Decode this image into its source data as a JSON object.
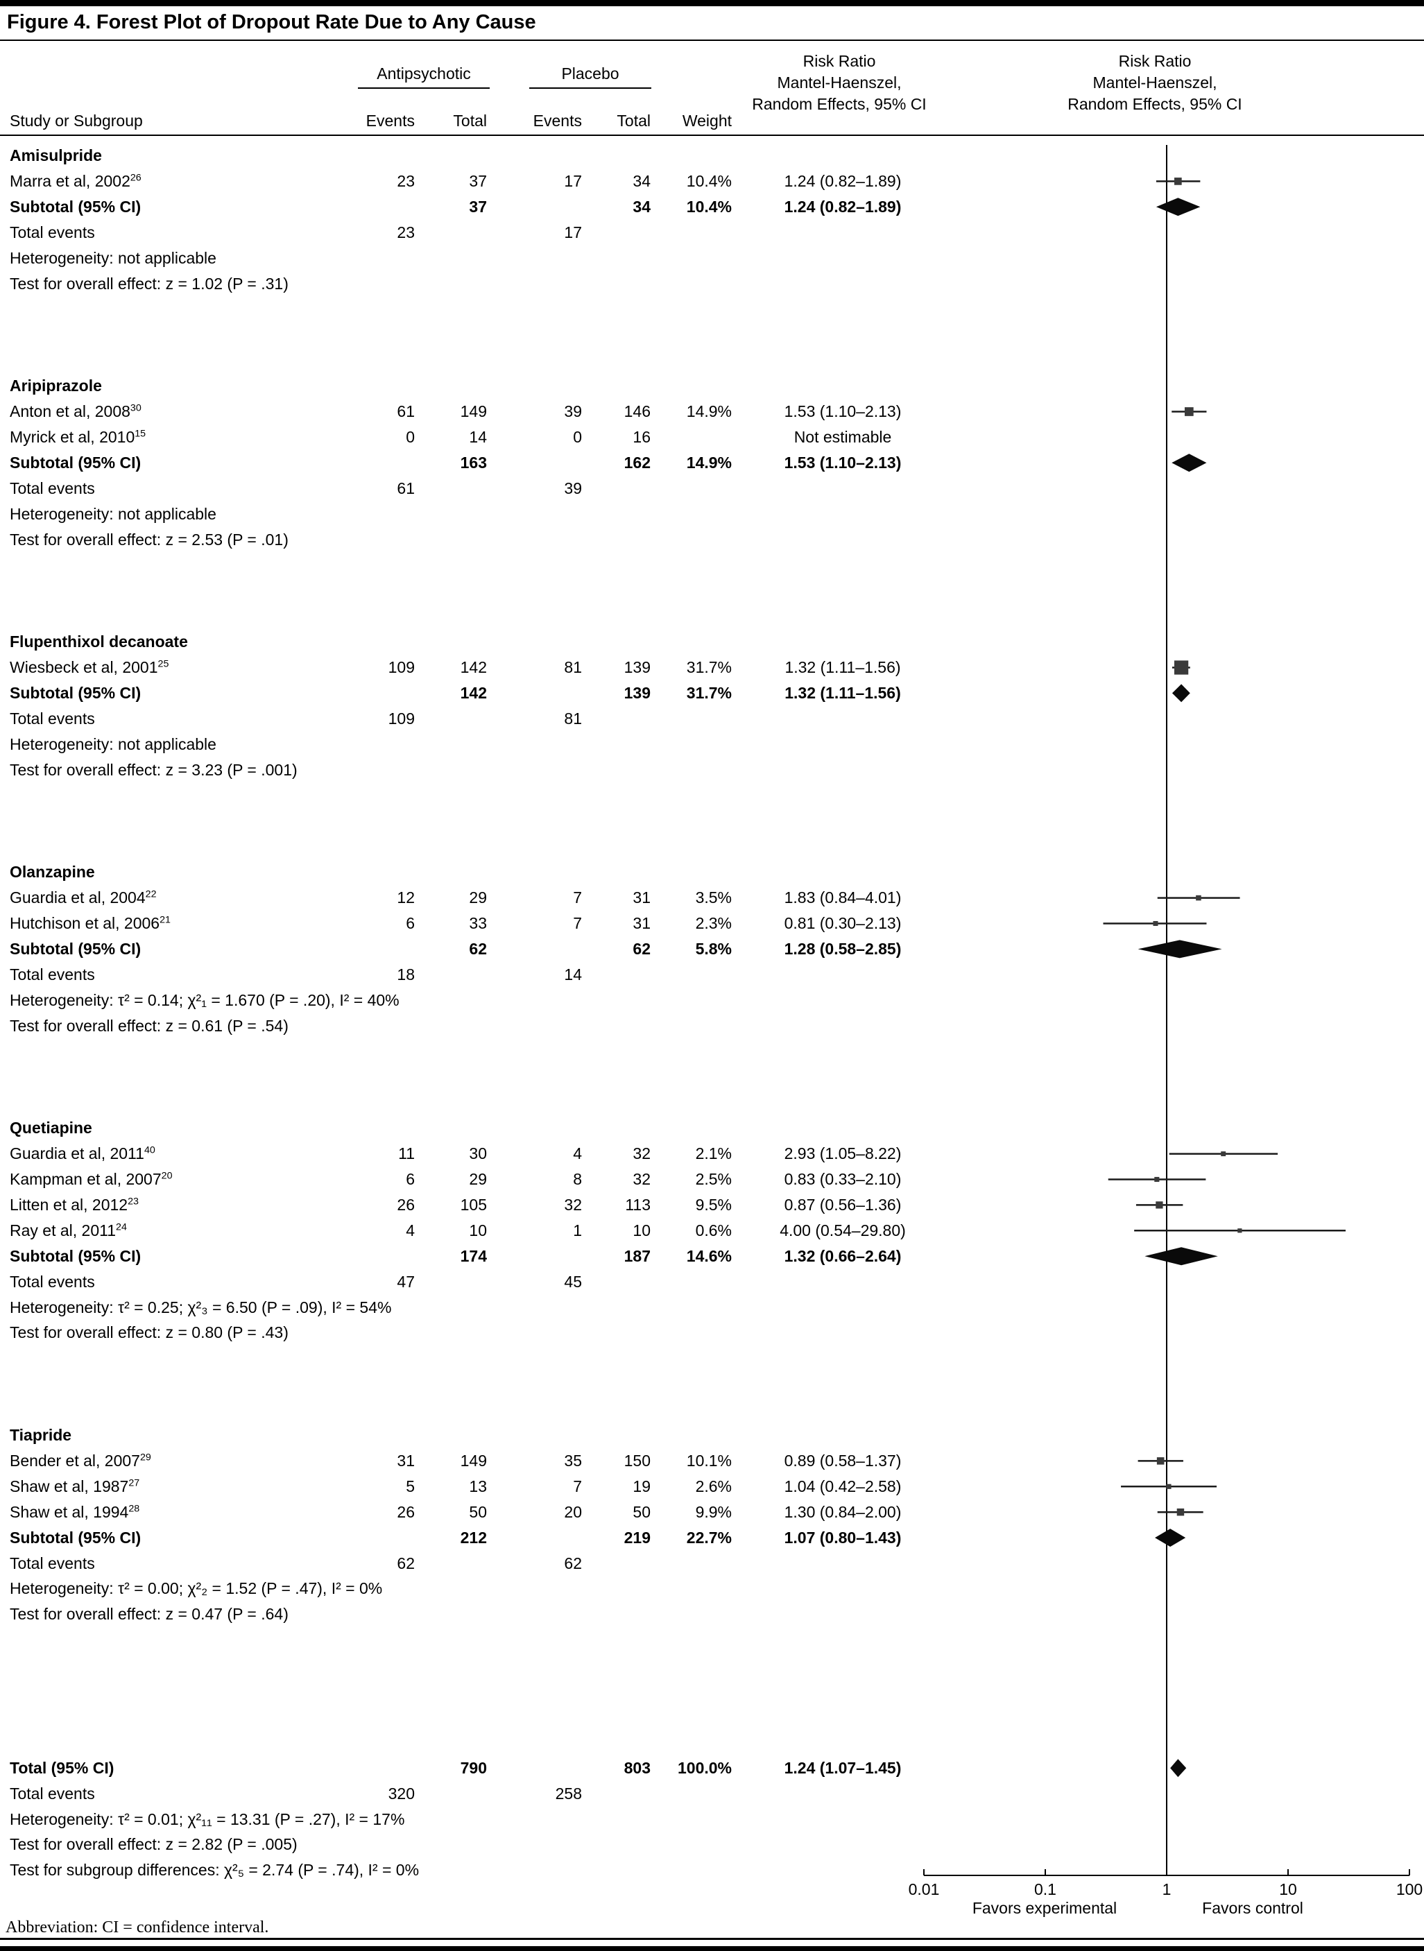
{
  "title": "Figure 4. Forest Plot of Dropout Rate Due to Any Cause",
  "header": {
    "col_study": "Study or Subgroup",
    "col_antipsychotic": "Antipsychotic",
    "col_placebo": "Placebo",
    "col_events": "Events",
    "col_total": "Total",
    "col_weight": "Weight",
    "rr_header_line1": "Risk Ratio",
    "rr_header_line2": "Mantel-Haenszel,",
    "rr_header_line3": "Random Effects, 95% CI"
  },
  "footer": {
    "favors_left": "Favors experimental",
    "favors_right": "Favors control",
    "abbreviation": "Abbreviation: CI = confidence interval."
  },
  "colors": {
    "text": "#000000",
    "marker_square": "#3a3a3a",
    "ci_line": "#1a1a1a",
    "diamond": "#0a0a0a",
    "axis": "#000000"
  },
  "chart_data": {
    "type": "forest",
    "title": "Figure 4. Forest Plot of Dropout Rate Due to Any Cause",
    "effect_measure": "Risk Ratio Mantel-Haenszel, Random Effects, 95% CI",
    "x_scale": "log10",
    "x_min": 0.01,
    "x_max": 100,
    "x_ticks": [
      0.01,
      0.1,
      1,
      10,
      100
    ],
    "x_tick_labels": [
      "0.01",
      "0.1",
      "1",
      "10",
      "100"
    ],
    "rows": [
      {
        "i": 0,
        "kind": "group",
        "study": "Amisulpride"
      },
      {
        "i": 1,
        "kind": "study",
        "study": "Marra et al, 2002",
        "ref": "26",
        "e1": "23",
        "t1": "37",
        "e2": "17",
        "t2": "34",
        "weight": "10.4%",
        "rr_text": "1.24 (0.82–1.89)",
        "rr": 1.24,
        "lo": 0.82,
        "hi": 1.89,
        "w": 10.4
      },
      {
        "i": 2,
        "kind": "subtotal",
        "study": "Subtotal (95% CI)",
        "t1": "37",
        "t2": "34",
        "weight": "10.4%",
        "rr_text": "1.24 (0.82–1.89)",
        "rr": 1.24,
        "lo": 0.82,
        "hi": 1.89
      },
      {
        "i": 3,
        "kind": "plain",
        "study": "Total events",
        "e1": "23",
        "e2": "17"
      },
      {
        "i": 4,
        "kind": "plain",
        "study": "Heterogeneity: not applicable"
      },
      {
        "i": 5,
        "kind": "plain",
        "study": "Test for overall effect: z = 1.02 (P = .31)"
      },
      {
        "i": 9,
        "kind": "group",
        "study": "Aripiprazole"
      },
      {
        "i": 10,
        "kind": "study",
        "study": "Anton et al, 2008",
        "ref": "30",
        "e1": "61",
        "t1": "149",
        "e2": "39",
        "t2": "146",
        "weight": "14.9%",
        "rr_text": "1.53 (1.10–2.13)",
        "rr": 1.53,
        "lo": 1.1,
        "hi": 2.13,
        "w": 14.9
      },
      {
        "i": 11,
        "kind": "study",
        "study": "Myrick et al, 2010",
        "ref": "15",
        "e1": "0",
        "t1": "14",
        "e2": "0",
        "t2": "16",
        "weight": "",
        "rr_text": "Not estimable"
      },
      {
        "i": 12,
        "kind": "subtotal",
        "study": "Subtotal (95% CI)",
        "t1": "163",
        "t2": "162",
        "weight": "14.9%",
        "rr_text": "1.53 (1.10–2.13)",
        "rr": 1.53,
        "lo": 1.1,
        "hi": 2.13
      },
      {
        "i": 13,
        "kind": "plain",
        "study": "Total events",
        "e1": "61",
        "e2": "39"
      },
      {
        "i": 14,
        "kind": "plain",
        "study": "Heterogeneity: not applicable"
      },
      {
        "i": 15,
        "kind": "plain",
        "study": "Test for overall effect: z = 2.53 (P = .01)"
      },
      {
        "i": 19,
        "kind": "group",
        "study": "Flupenthixol decanoate"
      },
      {
        "i": 20,
        "kind": "study",
        "study": "Wiesbeck et al, 2001",
        "ref": "25",
        "e1": "109",
        "t1": "142",
        "e2": "81",
        "t2": "139",
        "weight": "31.7%",
        "rr_text": "1.32 (1.11–1.56)",
        "rr": 1.32,
        "lo": 1.11,
        "hi": 1.56,
        "w": 31.7
      },
      {
        "i": 21,
        "kind": "subtotal",
        "study": "Subtotal (95% CI)",
        "t1": "142",
        "t2": "139",
        "weight": "31.7%",
        "rr_text": "1.32 (1.11–1.56)",
        "rr": 1.32,
        "lo": 1.11,
        "hi": 1.56
      },
      {
        "i": 22,
        "kind": "plain",
        "study": "Total events",
        "e1": "109",
        "e2": "81"
      },
      {
        "i": 23,
        "kind": "plain",
        "study": "Heterogeneity: not applicable"
      },
      {
        "i": 24,
        "kind": "plain",
        "study": "Test for overall effect: z = 3.23 (P = .001)"
      },
      {
        "i": 28,
        "kind": "group",
        "study": "Olanzapine"
      },
      {
        "i": 29,
        "kind": "study",
        "study": "Guardia et al, 2004",
        "ref": "22",
        "e1": "12",
        "t1": "29",
        "e2": "7",
        "t2": "31",
        "weight": "3.5%",
        "rr_text": "1.83 (0.84–4.01)",
        "rr": 1.83,
        "lo": 0.84,
        "hi": 4.01,
        "w": 3.5
      },
      {
        "i": 30,
        "kind": "study",
        "study": "Hutchison et al, 2006",
        "ref": "21",
        "e1": "6",
        "t1": "33",
        "e2": "7",
        "t2": "31",
        "weight": "2.3%",
        "rr_text": "0.81 (0.30–2.13)",
        "rr": 0.81,
        "lo": 0.3,
        "hi": 2.13,
        "w": 2.3
      },
      {
        "i": 31,
        "kind": "subtotal",
        "study": "Subtotal (95% CI)",
        "t1": "62",
        "t2": "62",
        "weight": "5.8%",
        "rr_text": "1.28 (0.58–2.85)",
        "rr": 1.28,
        "lo": 0.58,
        "hi": 2.85
      },
      {
        "i": 32,
        "kind": "plain",
        "study": "Total events",
        "e1": "18",
        "e2": "14"
      },
      {
        "i": 33,
        "kind": "plain",
        "study": "Heterogeneity: τ² = 0.14; χ²₁ = 1.670 (P = .20), I² = 40%"
      },
      {
        "i": 34,
        "kind": "plain",
        "study": "Test for overall effect: z = 0.61 (P = .54)"
      },
      {
        "i": 38,
        "kind": "group",
        "study": "Quetiapine"
      },
      {
        "i": 39,
        "kind": "study",
        "study": "Guardia et al, 2011",
        "ref": "40",
        "e1": "11",
        "t1": "30",
        "e2": "4",
        "t2": "32",
        "weight": "2.1%",
        "rr_text": "2.93 (1.05–8.22)",
        "rr": 2.93,
        "lo": 1.05,
        "hi": 8.22,
        "w": 2.1
      },
      {
        "i": 40,
        "kind": "study",
        "study": "Kampman et al, 2007",
        "ref": "20",
        "e1": "6",
        "t1": "29",
        "e2": "8",
        "t2": "32",
        "weight": "2.5%",
        "rr_text": "0.83 (0.33–2.10)",
        "rr": 0.83,
        "lo": 0.33,
        "hi": 2.1,
        "w": 2.5
      },
      {
        "i": 41,
        "kind": "study",
        "study": "Litten et al, 2012",
        "ref": "23",
        "e1": "26",
        "t1": "105",
        "e2": "32",
        "t2": "113",
        "weight": "9.5%",
        "rr_text": "0.87 (0.56–1.36)",
        "rr": 0.87,
        "lo": 0.56,
        "hi": 1.36,
        "w": 9.5
      },
      {
        "i": 42,
        "kind": "study",
        "study": "Ray et al, 2011",
        "ref": "24",
        "e1": "4",
        "t1": "10",
        "e2": "1",
        "t2": "10",
        "weight": "0.6%",
        "rr_text": "4.00 (0.54–29.80)",
        "rr": 4.0,
        "lo": 0.54,
        "hi": 29.8,
        "w": 0.6
      },
      {
        "i": 43,
        "kind": "subtotal",
        "study": "Subtotal (95% CI)",
        "t1": "174",
        "t2": "187",
        "weight": "14.6%",
        "rr_text": "1.32 (0.66–2.64)",
        "rr": 1.32,
        "lo": 0.66,
        "hi": 2.64
      },
      {
        "i": 44,
        "kind": "plain",
        "study": "Total events",
        "e1": "47",
        "e2": "45"
      },
      {
        "i": 45,
        "kind": "plain",
        "study": "Heterogeneity: τ² = 0.25; χ²₃ = 6.50 (P = .09), I² = 54%"
      },
      {
        "i": 46,
        "kind": "plain",
        "study": "Test for overall effect: z = 0.80 (P = .43)"
      },
      {
        "i": 50,
        "kind": "group",
        "study": "Tiapride"
      },
      {
        "i": 51,
        "kind": "study",
        "study": "Bender et al, 2007",
        "ref": "29",
        "e1": "31",
        "t1": "149",
        "e2": "35",
        "t2": "150",
        "weight": "10.1%",
        "rr_text": "0.89 (0.58–1.37)",
        "rr": 0.89,
        "lo": 0.58,
        "hi": 1.37,
        "w": 10.1
      },
      {
        "i": 52,
        "kind": "study",
        "study": "Shaw et al, 1987",
        "ref": "27",
        "e1": "5",
        "t1": "13",
        "e2": "7",
        "t2": "19",
        "weight": "2.6%",
        "rr_text": "1.04 (0.42–2.58)",
        "rr": 1.04,
        "lo": 0.42,
        "hi": 2.58,
        "w": 2.6
      },
      {
        "i": 53,
        "kind": "study",
        "study": "Shaw et al, 1994",
        "ref": "28",
        "e1": "26",
        "t1": "50",
        "e2": "20",
        "t2": "50",
        "weight": "9.9%",
        "rr_text": "1.30 (0.84–2.00)",
        "rr": 1.3,
        "lo": 0.84,
        "hi": 2.0,
        "w": 9.9
      },
      {
        "i": 54,
        "kind": "subtotal",
        "study": "Subtotal (95% CI)",
        "t1": "212",
        "t2": "219",
        "weight": "22.7%",
        "rr_text": "1.07 (0.80–1.43)",
        "rr": 1.07,
        "lo": 0.8,
        "hi": 1.43
      },
      {
        "i": 55,
        "kind": "plain",
        "study": "Total events",
        "e1": "62",
        "e2": "62"
      },
      {
        "i": 56,
        "kind": "plain",
        "study": "Heterogeneity: τ² = 0.00; χ²₂ = 1.52 (P = .47), I² = 0%"
      },
      {
        "i": 57,
        "kind": "plain",
        "study": "Test for overall effect: z = 0.47 (P = .64)"
      },
      {
        "i": 63,
        "kind": "total",
        "study": "Total (95% CI)",
        "t1": "790",
        "t2": "803",
        "weight": "100.0%",
        "rr_text": "1.24 (1.07–1.45)",
        "rr": 1.24,
        "lo": 1.07,
        "hi": 1.45
      },
      {
        "i": 64,
        "kind": "plain",
        "study": "Total events",
        "e1": "320",
        "e2": "258"
      },
      {
        "i": 65,
        "kind": "plain",
        "study": "Heterogeneity: τ² = 0.01; χ²₁₁ = 13.31 (P = .27), I² = 17%"
      },
      {
        "i": 66,
        "kind": "plain",
        "study": "Test for overall effect: z = 2.82 (P = .005)"
      },
      {
        "i": 67,
        "kind": "plain",
        "study": "Test for subgroup differences: χ²₅ = 2.74 (P = .74), I² = 0%"
      }
    ]
  }
}
